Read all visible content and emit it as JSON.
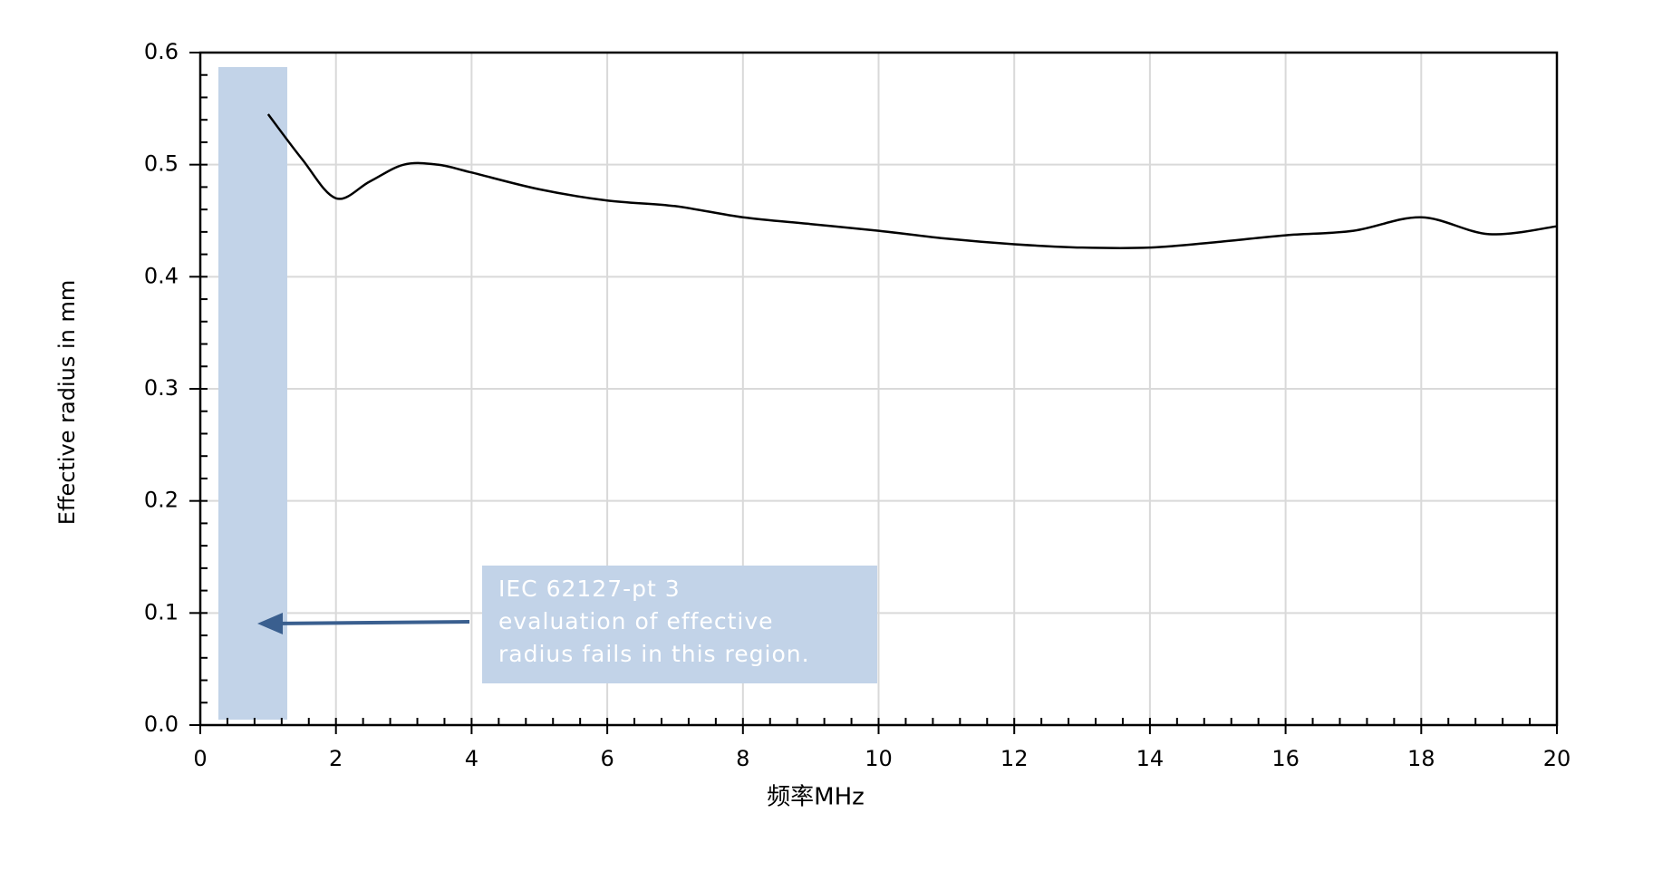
{
  "chart_data": {
    "type": "line",
    "x_label": "频率MHz",
    "y_label": "Effective  radius in mm",
    "x": [
      1,
      1.5,
      2,
      2.5,
      3,
      3.5,
      4,
      5,
      6,
      7,
      8,
      9,
      10,
      11,
      12,
      13,
      14,
      15,
      16,
      17,
      18,
      19,
      20
    ],
    "series": [
      {
        "color": "#000000",
        "values": [
          0.545,
          0.505,
          0.47,
          0.485,
          0.5,
          0.5,
          0.493,
          0.478,
          0.468,
          0.463,
          0.453,
          0.447,
          0.441,
          0.434,
          0.429,
          0.426,
          0.426,
          0.431,
          0.437,
          0.441,
          0.453,
          0.438,
          0.445
        ]
      }
    ],
    "xlim": [
      0,
      20
    ],
    "xticks": [
      0,
      2,
      4,
      6,
      8,
      10,
      12,
      14,
      16,
      18,
      20
    ],
    "ylim": [
      0,
      0.6
    ],
    "yticks": [
      {
        "value": 0,
        "label": "0.0"
      },
      0.1,
      0.2,
      0.3,
      0.4,
      0.5,
      0.6
    ],
    "grid": true,
    "annotation": {
      "lines": [
        "IEC 62127-pt 3",
        "evaluation of effective",
        "radius fails in this region."
      ]
    }
  }
}
